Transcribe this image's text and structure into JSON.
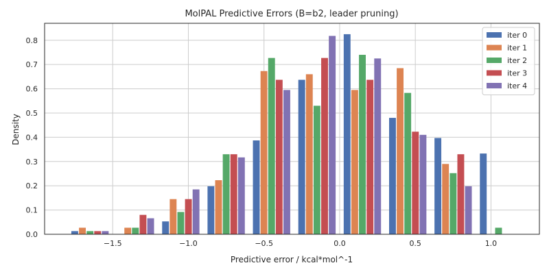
{
  "chart_data": {
    "type": "bar",
    "title": "MolPAL Predictive Errors (B=b2, leader pruning)",
    "xlabel": "Predictive error / kcal*mol^-1",
    "ylabel": "Density",
    "xlim": [
      -1.95,
      1.32
    ],
    "ylim": [
      0.0,
      0.87
    ],
    "x_ticks": [
      -1.5,
      -1.0,
      -0.5,
      0.0,
      0.5,
      1.0
    ],
    "x_tick_labels": [
      "−1.5",
      "−1.0",
      "−0.5",
      "0.0",
      "0.5",
      "1.0"
    ],
    "y_ticks": [
      0.0,
      0.1,
      0.2,
      0.3,
      0.4,
      0.5,
      0.6,
      0.7,
      0.8
    ],
    "y_tick_labels": [
      "0.0",
      "0.1",
      "0.2",
      "0.3",
      "0.4",
      "0.5",
      "0.6",
      "0.7",
      "0.8"
    ],
    "grid": true,
    "legend_position": "top-right",
    "bin_centers": [
      -1.65,
      -1.35,
      -1.05,
      -0.75,
      -0.45,
      -0.15,
      0.15,
      0.45,
      0.75,
      1.05
    ],
    "bin_width": 0.3,
    "series": [
      {
        "name": "iter 0",
        "color": "#4c72b0",
        "values": [
          0.013,
          0.0,
          0.053,
          0.198,
          0.387,
          0.637,
          0.825,
          0.48,
          0.397,
          0.333
        ]
      },
      {
        "name": "iter 1",
        "color": "#dd8452",
        "values": [
          0.027,
          0.027,
          0.145,
          0.223,
          0.673,
          0.66,
          0.595,
          0.685,
          0.29,
          0.0
        ]
      },
      {
        "name": "iter 2",
        "color": "#55a868",
        "values": [
          0.013,
          0.027,
          0.092,
          0.33,
          0.727,
          0.53,
          0.74,
          0.583,
          0.252,
          0.027
        ]
      },
      {
        "name": "iter 3",
        "color": "#c44e52",
        "values": [
          0.013,
          0.08,
          0.145,
          0.33,
          0.637,
          0.727,
          0.637,
          0.423,
          0.33,
          0.0
        ]
      },
      {
        "name": "iter 4",
        "color": "#8172b3",
        "values": [
          0.013,
          0.066,
          0.185,
          0.317,
          0.595,
          0.818,
          0.725,
          0.41,
          0.198,
          0.0
        ]
      }
    ]
  }
}
